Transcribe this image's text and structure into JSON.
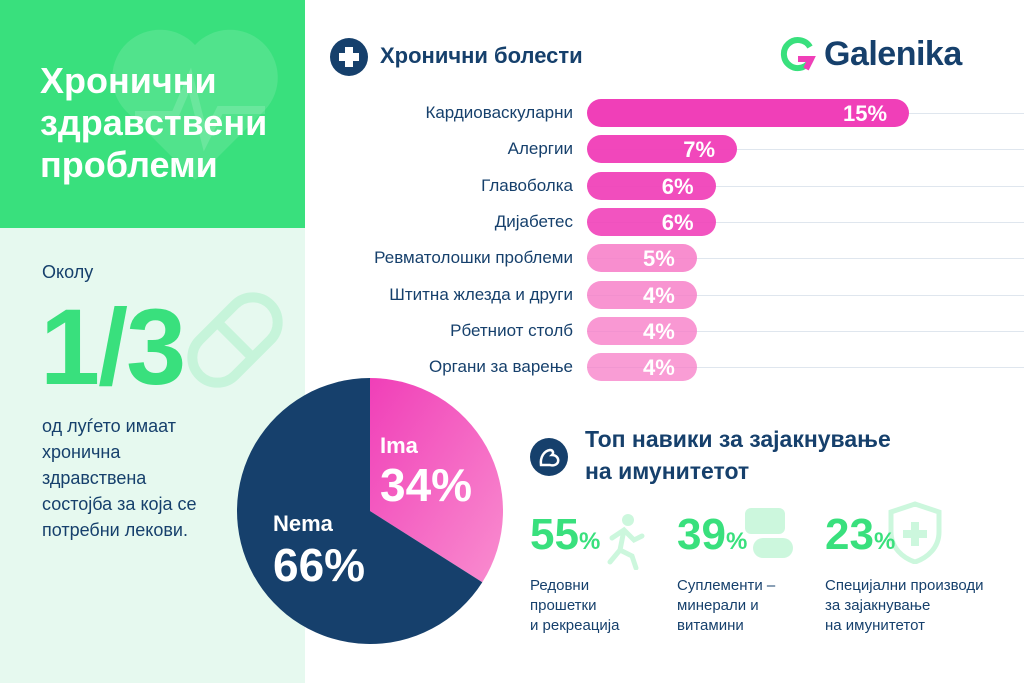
{
  "left": {
    "title_lines": [
      "Хронични",
      "здравствени",
      "проблеми"
    ],
    "okolu": "Околу",
    "fraction": "1/3",
    "desc_lines": [
      "од луѓето имаат",
      "хронична",
      "здравствена",
      "состојба за која се",
      "потребни лекови."
    ]
  },
  "brand": {
    "name": "Galenika",
    "icon": "galenika-logo-icon"
  },
  "chronic": {
    "title": "Хронични болести",
    "icon": "medical-cross-icon"
  },
  "habits": {
    "title_lines": [
      "Топ навики за зајакнување",
      "на имунитетот"
    ],
    "icon": "flexed-arm-icon",
    "items": [
      {
        "value": "55",
        "pct": "%",
        "icon": "running-person-icon",
        "lines": [
          "Редовни",
          "прошетки",
          "и рекреација"
        ]
      },
      {
        "value": "39",
        "pct": "%",
        "icon": "pills-icon",
        "lines": [
          "Суплементи –",
          "минерали и",
          "витамини"
        ]
      },
      {
        "value": "23",
        "pct": "%",
        "icon": "shield-plus-icon",
        "lines": [
          "Специјални производи",
          "за зајакнување",
          "на имунитетот"
        ]
      }
    ]
  },
  "colors": {
    "navy": "#16406c",
    "green": "#39e07d",
    "pink": "#f03fb8",
    "pink_light": "#f77cc7"
  },
  "chart_data": [
    {
      "type": "bar",
      "orientation": "horizontal",
      "title": "Хронични болести",
      "categories": [
        "Кардиоваскуларни",
        "Алергии",
        "Главоболка",
        "Дијабетес",
        "Ревматолошки проблеми",
        "Штитна жлезда и други",
        "Рбетниот столб",
        "Органи за варење"
      ],
      "values": [
        15,
        7,
        6,
        6,
        5,
        4,
        4,
        4
      ],
      "labels": [
        "15%",
        "7%",
        "6%",
        "6%",
        "5%",
        "4%",
        "4%",
        "4%"
      ],
      "unit": "%"
    },
    {
      "type": "pie",
      "slices": [
        {
          "name": "Ima",
          "value": 34,
          "label": "34%",
          "color": "#f03fb8"
        },
        {
          "name": "Nema",
          "value": 66,
          "label": "66%",
          "color": "#16406c"
        }
      ]
    }
  ]
}
